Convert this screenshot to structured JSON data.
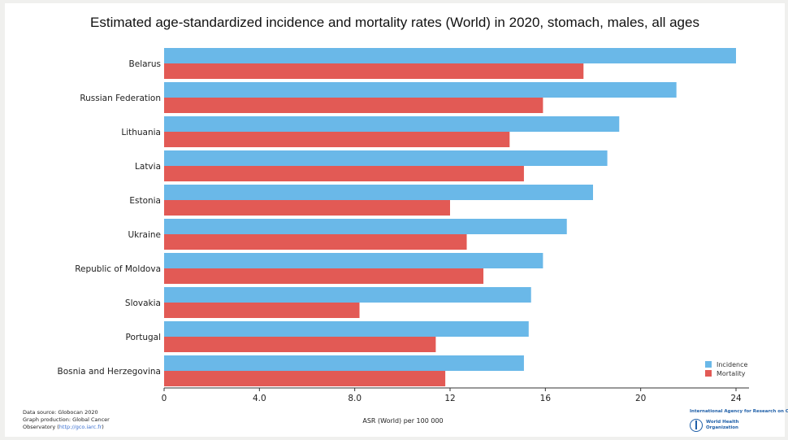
{
  "title": "Estimated age-standardized incidence and mortality rates (World) in 2020, stomach, males, all ages",
  "colors": {
    "incidence": "#6ab8e8",
    "mortality": "#e25a55"
  },
  "chart_data": {
    "type": "bar",
    "orientation": "horizontal",
    "categories": [
      "Belarus",
      "Russian Federation",
      "Lithuania",
      "Latvia",
      "Estonia",
      "Ukraine",
      "Republic of Moldova",
      "Slovakia",
      "Portugal",
      "Bosnia and Herzegovina"
    ],
    "series": [
      {
        "name": "Incidence",
        "values": [
          24.0,
          21.5,
          19.1,
          18.6,
          18.0,
          16.9,
          15.9,
          15.4,
          15.3,
          15.1
        ]
      },
      {
        "name": "Mortality",
        "values": [
          17.6,
          15.9,
          14.5,
          15.1,
          12.0,
          12.7,
          13.4,
          8.2,
          11.4,
          11.8
        ]
      }
    ],
    "xlabel": "ASR (World) per 100 000",
    "xticks": [
      "0",
      "4.0",
      "8.0",
      "12",
      "16",
      "20",
      "24"
    ],
    "xlim": [
      0,
      24
    ],
    "grid": false,
    "legend_position": "bottom-right"
  },
  "footer": {
    "line1": "Data source: Globocan 2020",
    "line2": "Graph production: Global Cancer",
    "line3_prefix": "Observatory (",
    "line3_link": "http://gco.iarc.fr",
    "line3_suffix": ")"
  },
  "logos": {
    "iarc": "International Agency for Research on Cancer",
    "who": "World Health Organization"
  }
}
